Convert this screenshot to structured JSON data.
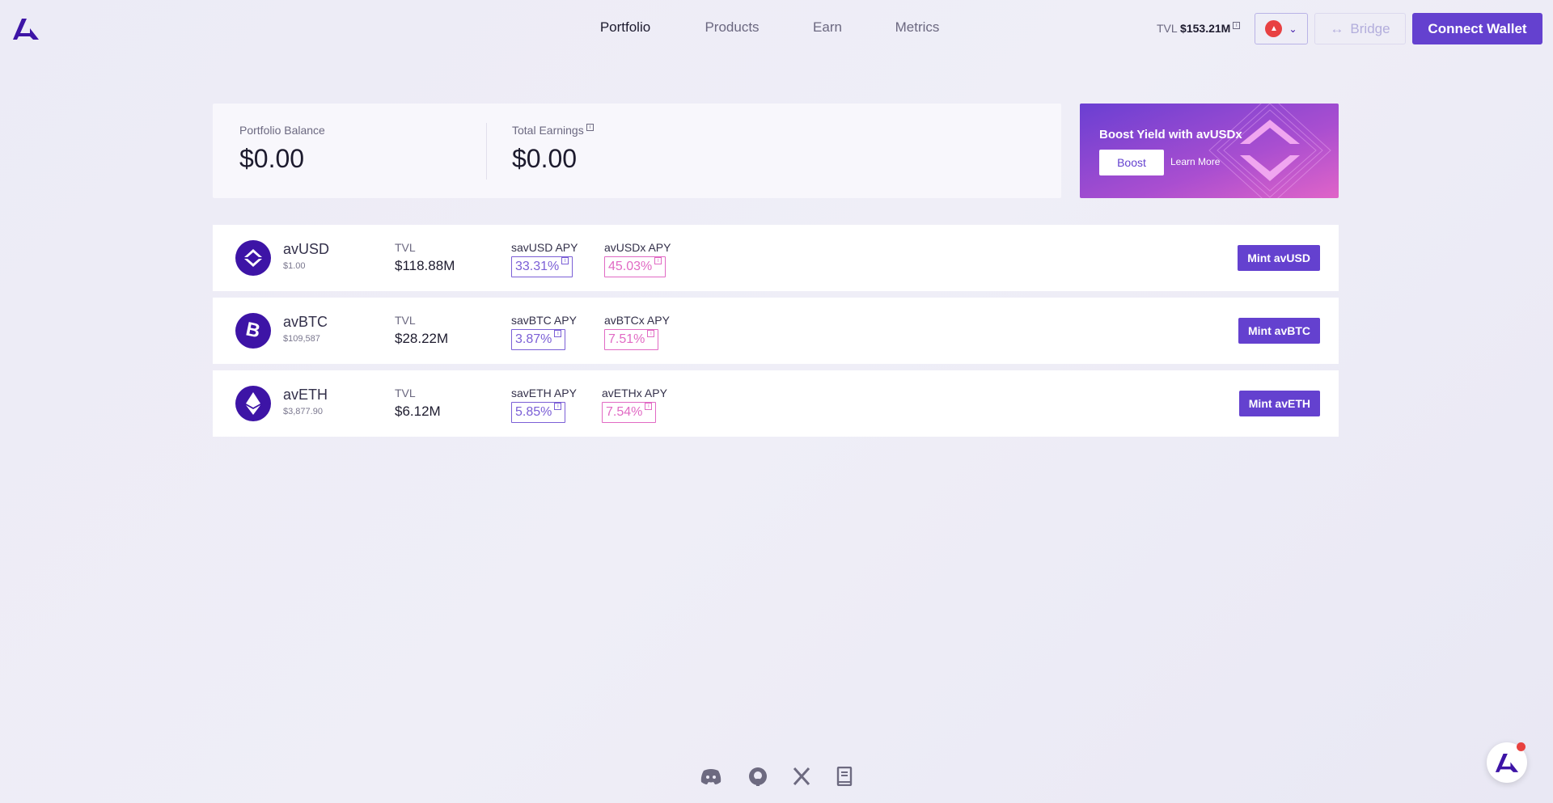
{
  "header": {
    "nav": [
      "Portfolio",
      "Products",
      "Earn",
      "Metrics"
    ],
    "active": "Portfolio",
    "tvl_label": "TVL",
    "tvl_value": "$153.21M",
    "network_icon": "avalanche-icon",
    "bridge_label": "Bridge",
    "connect_label": "Connect Wallet"
  },
  "portfolio": {
    "balance_label": "Portfolio Balance",
    "balance": "$0.00",
    "earnings_label": "Total Earnings",
    "earnings": "$0.00"
  },
  "banner": {
    "title": "Boost Yield with avUSDx",
    "boost": "Boost",
    "learn": "Learn More"
  },
  "assets": [
    {
      "name": "avUSD",
      "price": "$1.00",
      "tvl_label": "TVL",
      "tvl": "$118.88M",
      "s_label": "savUSD APY",
      "s_apy": "33.31%",
      "x_label": "avUSDx APY",
      "x_apy": "45.03%",
      "mint": "Mint avUSD",
      "icon": "avusd-icon"
    },
    {
      "name": "avBTC",
      "price": "$109,587",
      "tvl_label": "TVL",
      "tvl": "$28.22M",
      "s_label": "savBTC APY",
      "s_apy": "3.87%",
      "x_label": "avBTCx APY",
      "x_apy": "7.51%",
      "mint": "Mint avBTC",
      "icon": "bitcoin-icon"
    },
    {
      "name": "avETH",
      "price": "$3,877.90",
      "tvl_label": "TVL",
      "tvl": "$6.12M",
      "s_label": "savETH APY",
      "s_apy": "5.85%",
      "x_label": "avETHx APY",
      "x_apy": "7.54%",
      "mint": "Mint avETH",
      "icon": "ethereum-icon"
    }
  ],
  "footer": {
    "icons": [
      "discord-icon",
      "github-icon",
      "x-icon",
      "docs-icon"
    ]
  },
  "colors": {
    "accent": "#6441cf",
    "pink": "#e16ac4",
    "coin": "#3d14a6"
  }
}
